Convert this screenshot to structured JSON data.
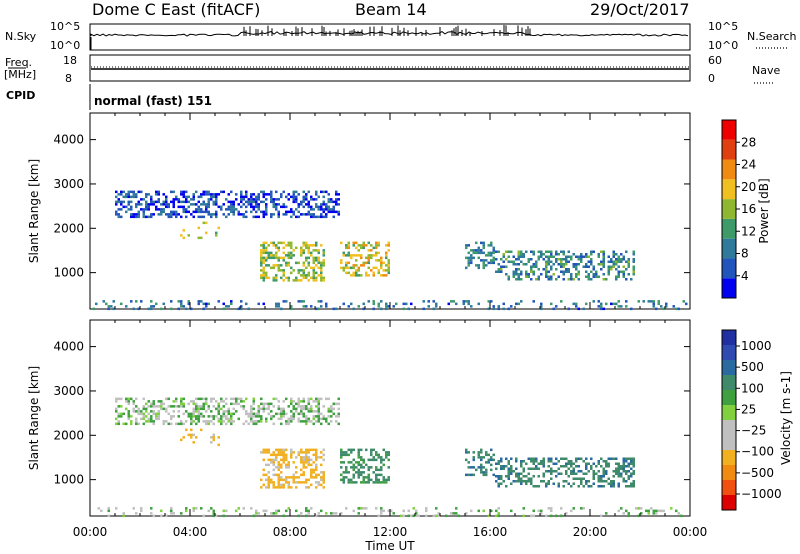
{
  "header": {
    "station": "Dome C East (fitACF)",
    "beam": "Beam 14",
    "date": "29/Oct/2017"
  },
  "top_panels": {
    "nsky_label": "N.Sky",
    "nsearch_label": "N.Search",
    "nsky_ticks": [
      "10^5",
      "10^0"
    ],
    "nsearch_ticks": [
      "10^5",
      "10^0"
    ],
    "freq_label_1": "Freq.",
    "freq_label_2": "[MHz]",
    "freq_ticks": [
      "18",
      "8"
    ],
    "nave_label": "Nave",
    "nave_ticks": [
      "60",
      "0"
    ],
    "cpid_label": "CPID",
    "cpid_value": "normal (fast) 151"
  },
  "colors": {
    "power_scale": [
      "#0000ee",
      "#2255bb",
      "#2f7a9a",
      "#3f9a6a",
      "#8fb830",
      "#f0c020",
      "#f08a10",
      "#e04010",
      "#ee0000"
    ],
    "velocity_scale": [
      "#dd0000",
      "#f05010",
      "#f08a10",
      "#f0b020",
      "#c0c0c0",
      "#c0c0c0",
      "#80d040",
      "#3fa040",
      "#3f8a6a",
      "#2a6aa0",
      "#2f4ab0",
      "#2030a0"
    ]
  },
  "chart_data": [
    {
      "type": "heatmap",
      "panel": "power",
      "title": "",
      "xlabel": "Time UT",
      "ylabel": "Slant Range [km]",
      "xlim": [
        "00:00",
        "24:00"
      ],
      "ylim": [
        180,
        4600
      ],
      "x_ticks": [
        "00:00",
        "04:00",
        "08:00",
        "12:00",
        "16:00",
        "20:00",
        "00:00"
      ],
      "y_ticks": [
        "1000",
        "2000",
        "3000",
        "4000"
      ],
      "colorbar": {
        "label": "Power [dB]",
        "range": [
          0,
          32
        ],
        "ticks": [
          "4",
          "8",
          "12",
          "16",
          "20",
          "24",
          "28"
        ]
      },
      "echo_regions": [
        {
          "t_start": 1.0,
          "t_end": 10.0,
          "range_low": 2250,
          "range_high": 2850,
          "power_db": 5
        },
        {
          "t_start": 3.6,
          "t_end": 5.2,
          "range_low": 1800,
          "range_high": 2150,
          "power_db": 18
        },
        {
          "t_start": 6.8,
          "t_end": 9.4,
          "range_low": 800,
          "range_high": 1700,
          "power_db": 16
        },
        {
          "t_start": 10.0,
          "t_end": 12.0,
          "range_low": 950,
          "range_high": 1700,
          "power_db": 18
        },
        {
          "t_start": 15.0,
          "t_end": 16.2,
          "range_low": 1100,
          "range_high": 1700,
          "power_db": 9
        },
        {
          "t_start": 16.2,
          "t_end": 21.8,
          "range_low": 850,
          "range_high": 1500,
          "power_db": 10
        },
        {
          "t_start": 0.0,
          "t_end": 24.0,
          "range_low": 200,
          "range_high": 380,
          "power_db": 8
        }
      ]
    },
    {
      "type": "heatmap",
      "panel": "velocity",
      "title": "",
      "xlabel": "Time UT",
      "ylabel": "Slant Range [km]",
      "xlim": [
        "00:00",
        "24:00"
      ],
      "ylim": [
        180,
        4600
      ],
      "x_ticks": [
        "00:00",
        "04:00",
        "08:00",
        "12:00",
        "16:00",
        "20:00",
        "00:00"
      ],
      "y_ticks": [
        "1000",
        "2000",
        "3000",
        "4000"
      ],
      "colorbar": {
        "label": "Velocity [m s-1]",
        "ticks": [
          "1000",
          "500",
          "100",
          "25",
          "−25",
          "−100",
          "−500",
          "−1000"
        ]
      },
      "echo_regions": [
        {
          "t_start": 1.0,
          "t_end": 10.0,
          "range_low": 2250,
          "range_high": 2850,
          "velocity": 0
        },
        {
          "t_start": 3.6,
          "t_end": 5.2,
          "range_low": 1800,
          "range_high": 2150,
          "velocity": -150
        },
        {
          "t_start": 6.8,
          "t_end": 9.4,
          "range_low": 800,
          "range_high": 1700,
          "velocity": -150
        },
        {
          "t_start": 10.0,
          "t_end": 12.0,
          "range_low": 950,
          "range_high": 1700,
          "velocity": 150
        },
        {
          "t_start": 15.0,
          "t_end": 16.2,
          "range_low": 1100,
          "range_high": 1700,
          "velocity": 250
        },
        {
          "t_start": 16.2,
          "t_end": 21.8,
          "range_low": 850,
          "range_high": 1500,
          "velocity": 250
        },
        {
          "t_start": 0.0,
          "t_end": 24.0,
          "range_low": 200,
          "range_high": 380,
          "velocity": 0
        }
      ]
    }
  ]
}
